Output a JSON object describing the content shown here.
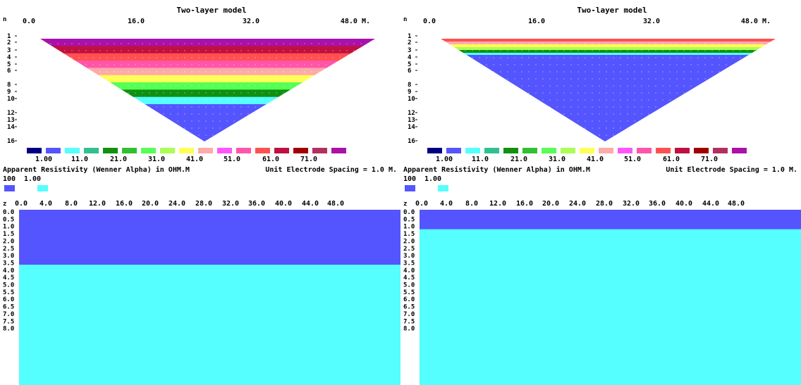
{
  "panels": [
    {
      "id": "left",
      "title": "Two-layer model",
      "x_axis": {
        "n_label": "n",
        "ticks": [
          "0.0",
          "16.0",
          "32.0",
          "48.0 M."
        ]
      },
      "n_ticks": [
        "1",
        "2",
        "3",
        "4",
        "5",
        "6",
        "8",
        "9",
        "10",
        "12",
        "13",
        "14",
        "16"
      ],
      "pseudosection_layer_colors": [
        "#aa10aa",
        "#c01040",
        "#ff5050",
        "#ff55aa",
        "#ffaaaa",
        "#ffff55",
        "#55ff55",
        "#109010",
        "#55ffff",
        "#5555ff"
      ],
      "color_scale": {
        "colors": [
          "#000080",
          "#5555ff",
          "#55ffff",
          "#30c090",
          "#109010",
          "#30c030",
          "#55ff55",
          "#aaff55",
          "#ffff55",
          "#ffaaaa",
          "#ff55ff",
          "#ff55aa",
          "#ff5050",
          "#c01040",
          "#a00000",
          "#b03060",
          "#aa10aa"
        ],
        "labels": [
          "1.00",
          "11.0",
          "21.0",
          "31.0",
          "41.0",
          "51.0",
          "61.0",
          "71.0"
        ]
      },
      "caption_left": "Apparent Resistivity (Wenner Alpha) in OHM.M",
      "caption_right": "Unit Electrode Spacing = 1.0 M.",
      "model_legend": {
        "labels": [
          "100",
          "1.00"
        ],
        "colors": [
          "#5555ff",
          "#55ffff"
        ]
      },
      "depth_axis": {
        "z_label": "z",
        "x_ticks": [
          "0.0",
          "4.0",
          "8.0",
          "12.0",
          "16.0",
          "20.0",
          "24.0",
          "28.0",
          "32.0",
          "36.0",
          "40.0",
          "44.0",
          "48.0"
        ],
        "z_ticks": [
          "0.0",
          "0.5",
          "1.0",
          "1.5",
          "2.0",
          "2.5",
          "3.0",
          "3.5",
          "4.0",
          "4.5",
          "5.0",
          "5.5",
          "6.0",
          "6.5",
          "7.0",
          "7.5",
          "8.0"
        ]
      },
      "model": {
        "upper_layer_thickness": 3.0,
        "upper_color": "#5555ff",
        "lower_color": "#55ffff"
      }
    },
    {
      "id": "right",
      "title": "Two-layer model",
      "x_axis": {
        "n_label": "n",
        "ticks": [
          "0.0",
          "16.0",
          "32.0",
          "48.0 M."
        ]
      },
      "n_ticks": [
        "1",
        "2",
        "3",
        "4",
        "5",
        "6",
        "8",
        "9",
        "10",
        "12",
        "13",
        "14",
        "16"
      ],
      "pseudosection_layer_colors": [
        "#ff5050",
        "#ffaaaa",
        "#ffff55",
        "#aaff55",
        "#109010",
        "#55ffff",
        "#5555ff"
      ],
      "color_scale": {
        "colors": [
          "#000080",
          "#5555ff",
          "#55ffff",
          "#30c090",
          "#109010",
          "#30c030",
          "#55ff55",
          "#aaff55",
          "#ffff55",
          "#ffaaaa",
          "#ff55ff",
          "#ff55aa",
          "#ff5050",
          "#c01040",
          "#a00000",
          "#b03060",
          "#aa10aa"
        ],
        "labels": [
          "1.00",
          "11.0",
          "21.0",
          "31.0",
          "41.0",
          "51.0",
          "61.0",
          "71.0"
        ]
      },
      "caption_left": "Apparent Resistivity (Wenner Alpha) in OHM.M",
      "caption_right": "Unit Electrode Spacing = 1.0 M.",
      "model_legend": {
        "labels": [
          "100",
          "1.00"
        ],
        "colors": [
          "#5555ff",
          "#55ffff"
        ]
      },
      "depth_axis": {
        "z_label": "z",
        "x_ticks": [
          "0.0",
          "4.0",
          "8.0",
          "12.0",
          "16.0",
          "20.0",
          "24.0",
          "28.0",
          "32.0",
          "36.0",
          "40.0",
          "44.0",
          "48.0"
        ],
        "z_ticks": [
          "0.0",
          "0.5",
          "1.0",
          "1.5",
          "2.0",
          "2.5",
          "3.0",
          "3.5",
          "4.0",
          "4.5",
          "5.0",
          "5.5",
          "6.0",
          "6.5",
          "7.0",
          "7.5",
          "8.0"
        ]
      },
      "model": {
        "upper_layer_thickness": 1.0,
        "upper_color": "#5555ff",
        "lower_color": "#55ffff"
      }
    }
  ]
}
